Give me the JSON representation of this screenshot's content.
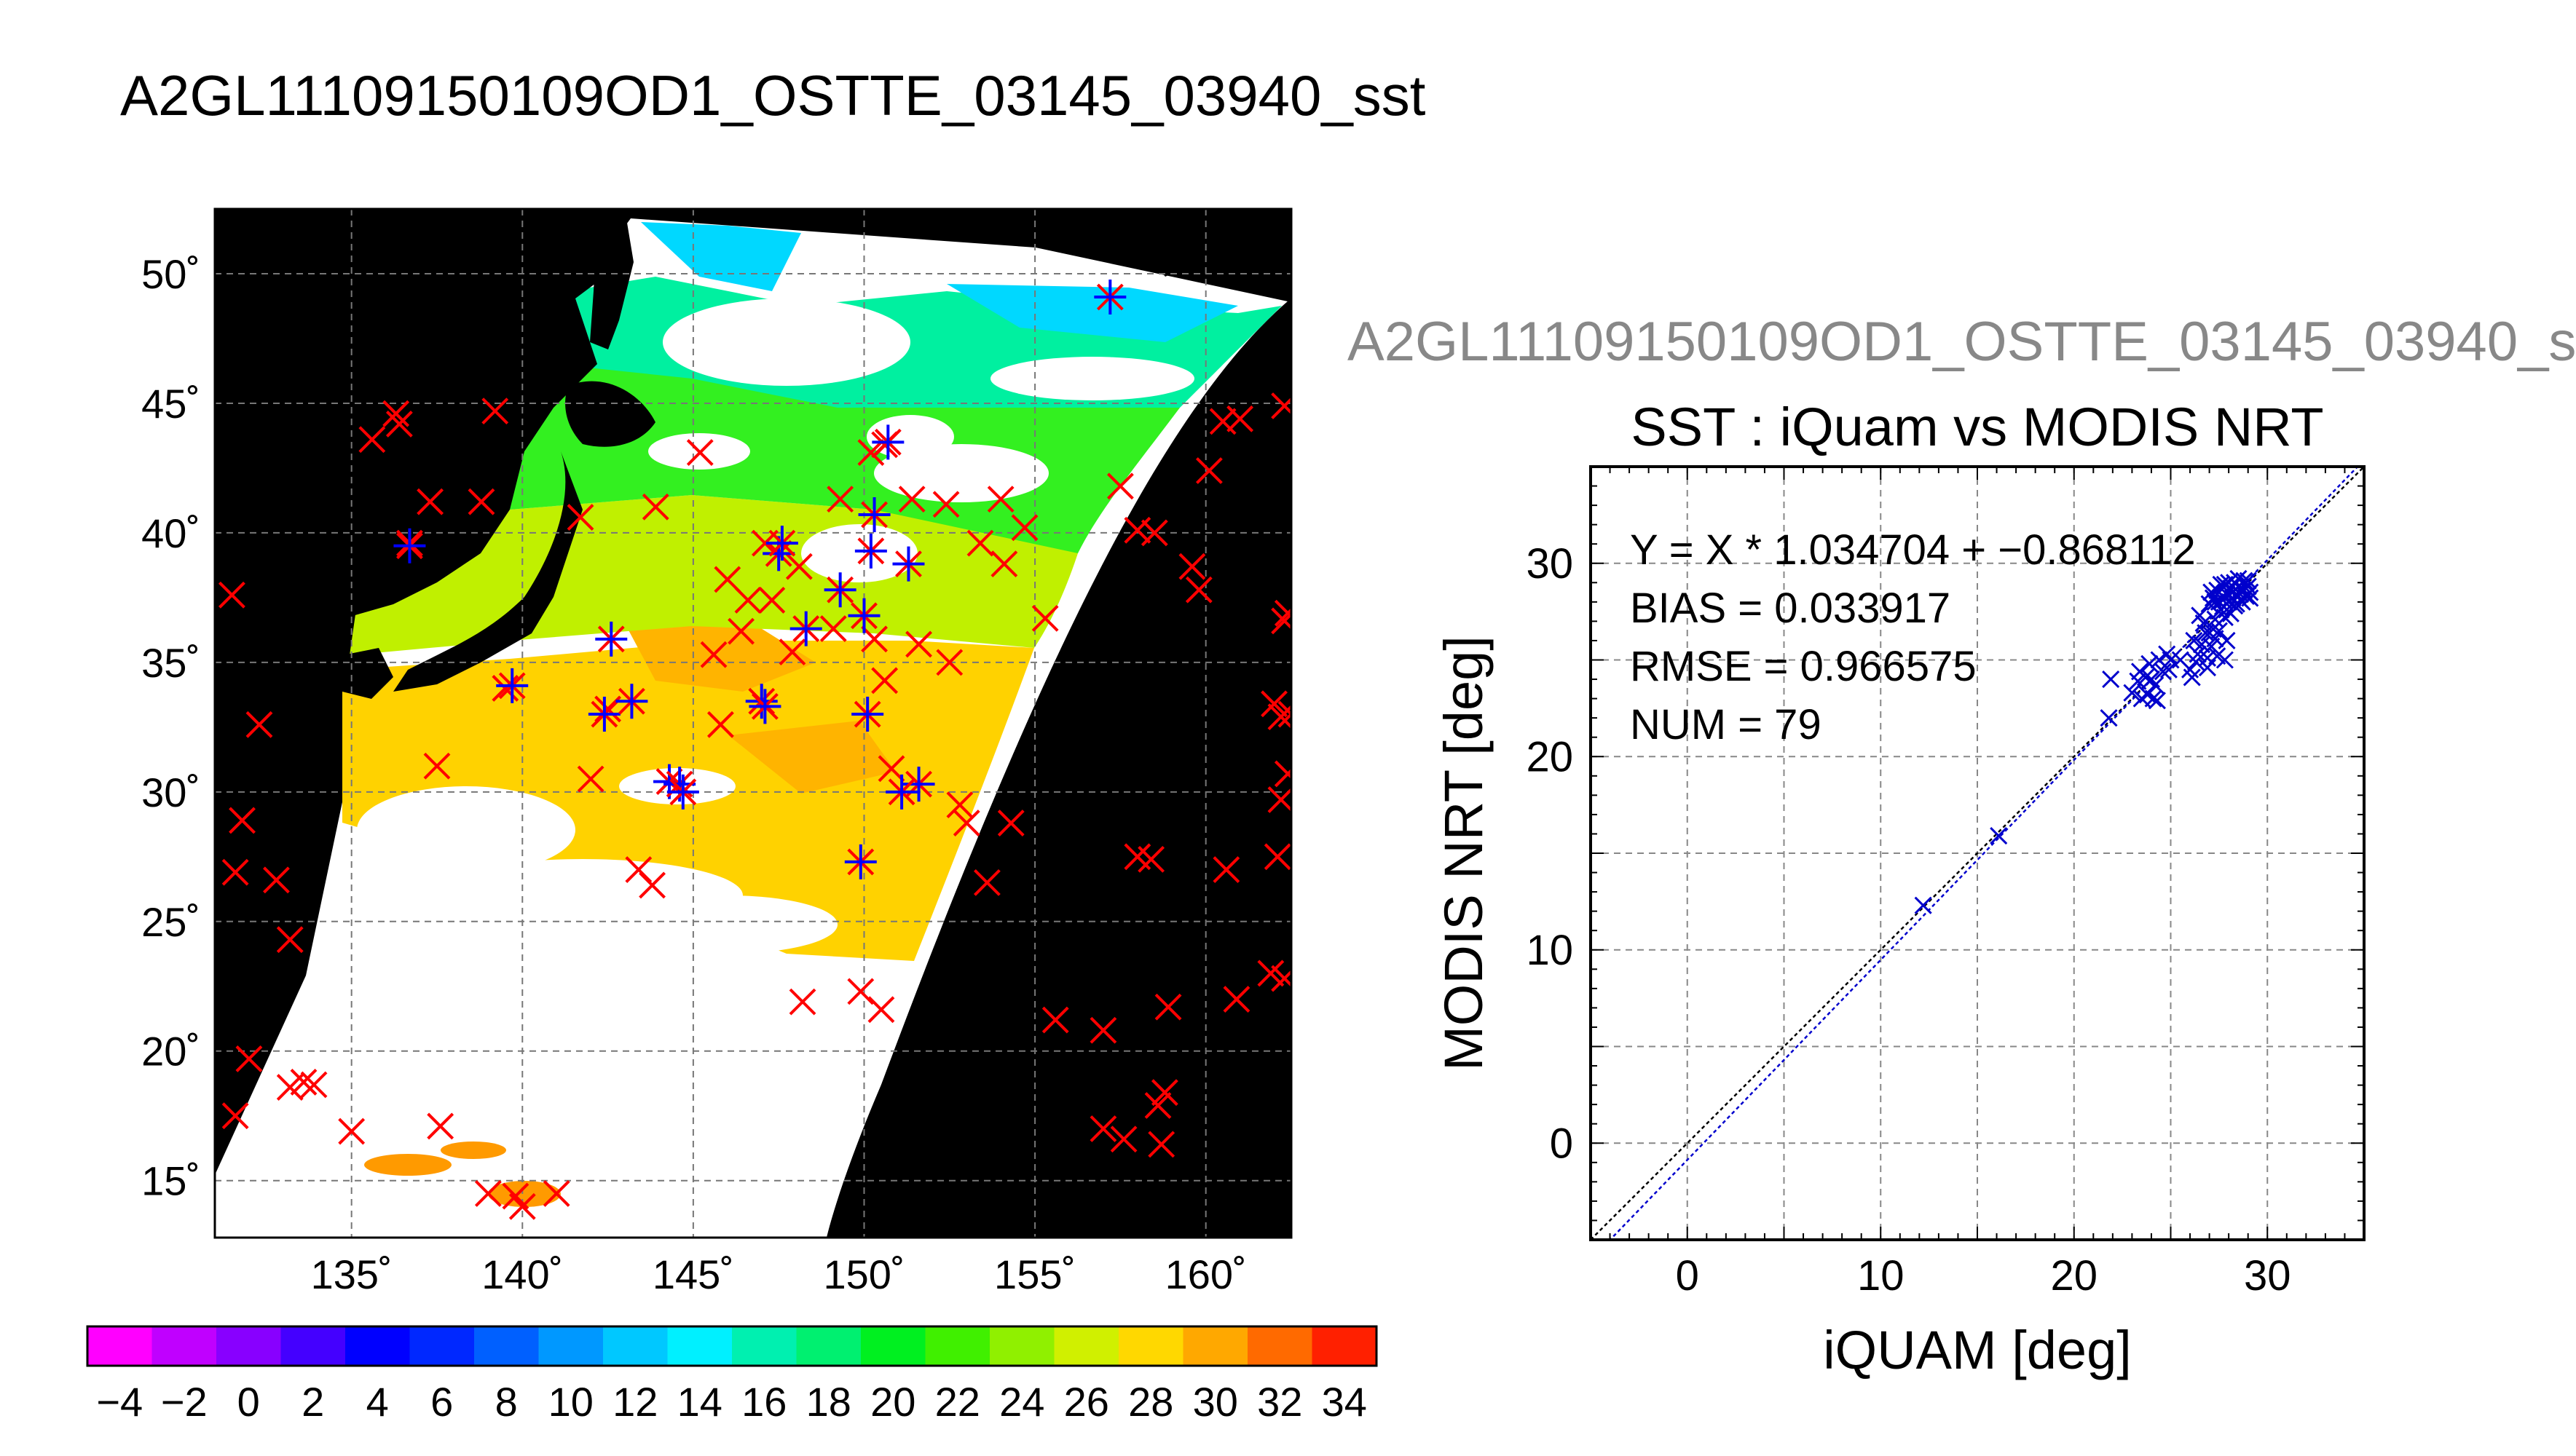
{
  "title": "A2GL11109150109OD1_OSTTE_03145_03940_sst",
  "scatter_subtitle": "A2GL11109150109OD1_OSTTE_03145_03940_s",
  "chart_data": [
    {
      "type": "map",
      "lat_ticks": [
        "50˚",
        "45˚",
        "40˚",
        "35˚",
        "30˚",
        "25˚",
        "20˚",
        "15˚"
      ],
      "lat_values": [
        50,
        45,
        40,
        35,
        30,
        25,
        20,
        15
      ],
      "lon_ticks": [
        "135˚",
        "140˚",
        "145˚",
        "150˚",
        "155˚",
        "160˚"
      ],
      "lon_values": [
        135,
        140,
        145,
        150,
        155,
        160
      ],
      "lon_range": [
        131,
        162.5
      ],
      "lat_range": [
        12.8,
        52.5
      ],
      "colors": {
        "ocean_nodata": "#000000",
        "cloud": "#ffffff",
        "match_iquam_only": "#ff0000",
        "match_both": "#0000ff"
      },
      "red_markers": [
        [
          135.6,
          43.6
        ],
        [
          136.3,
          44.6
        ],
        [
          136.4,
          44.2
        ],
        [
          139.2,
          44.7
        ],
        [
          136.7,
          39.6
        ],
        [
          137.3,
          41.2
        ],
        [
          138.8,
          41.2
        ],
        [
          141.7,
          40.6
        ],
        [
          143.9,
          41.0
        ],
        [
          145.2,
          43.1
        ],
        [
          147.1,
          39.6
        ],
        [
          149.3,
          41.3
        ],
        [
          150.2,
          43.1
        ],
        [
          150.6,
          43.4
        ],
        [
          151.4,
          41.3
        ],
        [
          152.4,
          41.1
        ],
        [
          154.0,
          41.3
        ],
        [
          154.7,
          40.2
        ],
        [
          153.4,
          39.6
        ],
        [
          154.1,
          38.8
        ],
        [
          155.3,
          36.7
        ],
        [
          146.0,
          38.2
        ],
        [
          146.6,
          37.4
        ],
        [
          147.3,
          37.4
        ],
        [
          148.1,
          38.7
        ],
        [
          145.6,
          35.3
        ],
        [
          146.4,
          36.2
        ],
        [
          147.9,
          35.4
        ],
        [
          149.1,
          36.3
        ],
        [
          150.3,
          35.9
        ],
        [
          150.6,
          34.3
        ],
        [
          151.6,
          35.7
        ],
        [
          152.5,
          35.0
        ],
        [
          150.8,
          30.9
        ],
        [
          152.8,
          29.5
        ],
        [
          153.0,
          28.8
        ],
        [
          154.3,
          28.8
        ],
        [
          153.6,
          26.5
        ],
        [
          142.0,
          30.5
        ],
        [
          143.4,
          27.0
        ],
        [
          143.8,
          26.4
        ],
        [
          148.2,
          21.9
        ],
        [
          149.9,
          22.3
        ],
        [
          150.5,
          21.6
        ],
        [
          137.5,
          31.0
        ],
        [
          131.5,
          37.6
        ],
        [
          132.3,
          32.6
        ],
        [
          131.8,
          28.9
        ],
        [
          131.6,
          26.9
        ],
        [
          132.8,
          26.6
        ],
        [
          133.2,
          24.3
        ],
        [
          132.0,
          19.7
        ],
        [
          131.6,
          17.5
        ],
        [
          133.2,
          18.6
        ],
        [
          133.6,
          18.8
        ],
        [
          133.9,
          18.7
        ],
        [
          135.0,
          16.9
        ],
        [
          137.6,
          17.1
        ],
        [
          139.0,
          14.5
        ],
        [
          139.8,
          14.4
        ],
        [
          140.0,
          14.0
        ],
        [
          141.0,
          14.5
        ],
        [
          157.5,
          41.8
        ],
        [
          158.0,
          40.1
        ],
        [
          158.5,
          40.0
        ],
        [
          159.6,
          38.7
        ],
        [
          159.8,
          37.8
        ],
        [
          160.5,
          44.3
        ],
        [
          161.0,
          44.4
        ],
        [
          160.1,
          42.4
        ],
        [
          162.3,
          44.9
        ],
        [
          162.4,
          36.9
        ],
        [
          162.3,
          36.6
        ],
        [
          162.0,
          33.4
        ],
        [
          162.2,
          32.9
        ],
        [
          162.5,
          33.0
        ],
        [
          162.4,
          30.7
        ],
        [
          162.2,
          29.7
        ],
        [
          162.1,
          27.5
        ],
        [
          160.6,
          27.0
        ],
        [
          161.9,
          23.0
        ],
        [
          162.3,
          22.8
        ],
        [
          160.9,
          22.0
        ],
        [
          158.0,
          27.5
        ],
        [
          158.4,
          27.4
        ],
        [
          155.6,
          21.2
        ],
        [
          157.0,
          20.8
        ],
        [
          158.9,
          21.7
        ],
        [
          157.0,
          17.0
        ],
        [
          157.6,
          16.6
        ],
        [
          158.7,
          16.4
        ],
        [
          158.8,
          18.4
        ],
        [
          158.6,
          17.9
        ],
        [
          139.5,
          34.0
        ],
        [
          142.5,
          33.2
        ],
        [
          145.8,
          32.6
        ]
      ],
      "blue_markers": [
        [
          157.2,
          49.1
        ],
        [
          150.7,
          43.5
        ],
        [
          150.3,
          40.7
        ],
        [
          151.3,
          38.8
        ],
        [
          147.5,
          39.2
        ],
        [
          147.6,
          39.6
        ],
        [
          149.3,
          37.8
        ],
        [
          150.0,
          36.8
        ],
        [
          148.3,
          36.3
        ],
        [
          150.1,
          33.0
        ],
        [
          151.6,
          30.3
        ],
        [
          151.1,
          30.0
        ],
        [
          144.3,
          30.4
        ],
        [
          144.6,
          30.3
        ],
        [
          144.7,
          30.0
        ],
        [
          142.4,
          33.0
        ],
        [
          143.2,
          33.5
        ],
        [
          142.6,
          35.9
        ],
        [
          139.7,
          34.1
        ],
        [
          149.9,
          27.3
        ],
        [
          147.0,
          33.5
        ],
        [
          147.1,
          33.3
        ],
        [
          136.7,
          39.5
        ],
        [
          150.2,
          39.3
        ]
      ]
    },
    {
      "type": "colorbar",
      "ticks": [
        -4,
        -2,
        0,
        2,
        4,
        6,
        8,
        10,
        12,
        14,
        16,
        18,
        20,
        22,
        24,
        26,
        28,
        30,
        32,
        34
      ],
      "tick_labels": [
        "−4",
        "−2",
        "0",
        "2",
        "4",
        "6",
        "8",
        "10",
        "12",
        "14",
        "16",
        "18",
        "20",
        "22",
        "24",
        "26",
        "28",
        "30",
        "32",
        "34"
      ],
      "range": [
        -5,
        35
      ]
    },
    {
      "type": "scatter",
      "title": "SST : iQuam vs MODIS NRT",
      "xlabel": "iQUAM [deg]",
      "ylabel": "MODIS NRT [deg]",
      "xlim": [
        -5,
        35
      ],
      "ylim": [
        -5,
        35
      ],
      "ticks": [
        0,
        10,
        20,
        30
      ],
      "tick_labels": [
        "0",
        "10",
        "20",
        "30"
      ],
      "grid": true,
      "stats": [
        "Y = X * 1.034704 + −0.868112",
        "BIAS = 0.033917",
        "RMSE = 0.966575",
        "NUM = 79"
      ],
      "fit": {
        "slope": 1.034704,
        "intercept": -0.868112
      },
      "point_color": "#0000cc",
      "points": [
        [
          12.2,
          12.3
        ],
        [
          16.1,
          15.9
        ],
        [
          21.8,
          22.0
        ],
        [
          21.9,
          24.0
        ],
        [
          23.0,
          23.3
        ],
        [
          23.3,
          23.9
        ],
        [
          23.4,
          24.4
        ],
        [
          23.5,
          23.0
        ],
        [
          23.8,
          23.2
        ],
        [
          23.9,
          24.8
        ],
        [
          24.0,
          24.0
        ],
        [
          24.1,
          23.0
        ],
        [
          24.3,
          22.9
        ],
        [
          24.4,
          25.0
        ],
        [
          24.6,
          24.4
        ],
        [
          24.8,
          25.3
        ],
        [
          25.0,
          25.0
        ],
        [
          26.0,
          24.5
        ],
        [
          26.1,
          24.1
        ],
        [
          26.3,
          24.9
        ],
        [
          26.4,
          25.3
        ],
        [
          26.6,
          25.8
        ],
        [
          26.8,
          26.4
        ],
        [
          26.9,
          24.6
        ],
        [
          26.9,
          25.1
        ],
        [
          27.1,
          25.7
        ],
        [
          27.2,
          26.6
        ],
        [
          27.3,
          26.1
        ],
        [
          27.3,
          27.1
        ],
        [
          27.4,
          25.2
        ],
        [
          27.5,
          26.5
        ],
        [
          27.6,
          27.6
        ],
        [
          27.8,
          25.0
        ],
        [
          27.9,
          26.0
        ],
        [
          27.2,
          28.2
        ],
        [
          27.4,
          28.6
        ],
        [
          27.5,
          28.0
        ],
        [
          27.7,
          28.3
        ],
        [
          27.8,
          28.9
        ],
        [
          27.9,
          28.4
        ],
        [
          28.0,
          28.0
        ],
        [
          28.1,
          28.7
        ],
        [
          28.2,
          28.2
        ],
        [
          28.3,
          29.0
        ],
        [
          28.4,
          28.4
        ],
        [
          28.5,
          28.8
        ],
        [
          28.6,
          28.1
        ],
        [
          28.7,
          28.6
        ],
        [
          28.8,
          29.1
        ],
        [
          28.9,
          28.3
        ],
        [
          29.0,
          28.8
        ],
        [
          29.1,
          28.5
        ],
        [
          28.2,
          28.5
        ],
        [
          28.0,
          29.0
        ],
        [
          27.6,
          28.9
        ],
        [
          27.1,
          28.5
        ],
        [
          28.3,
          27.8
        ],
        [
          28.6,
          28.4
        ],
        [
          28.9,
          29.0
        ],
        [
          29.1,
          28.2
        ],
        [
          27.7,
          28.1
        ],
        [
          28.4,
          27.9
        ],
        [
          28.8,
          28.6
        ],
        [
          27.9,
          27.6
        ],
        [
          27.0,
          27.9
        ],
        [
          26.5,
          27.3
        ],
        [
          28.5,
          29.2
        ],
        [
          28.1,
          27.4
        ],
        [
          27.3,
          28.0
        ],
        [
          28.7,
          28.0
        ],
        [
          26.7,
          26.9
        ],
        [
          25.5,
          25.0
        ],
        [
          24.9,
          24.5
        ],
        [
          23.7,
          24.1
        ],
        [
          24.2,
          23.7
        ],
        [
          26.2,
          26.0
        ],
        [
          27.0,
          26.4
        ],
        [
          27.8,
          27.2
        ],
        [
          29.0,
          29.1
        ]
      ]
    }
  ]
}
